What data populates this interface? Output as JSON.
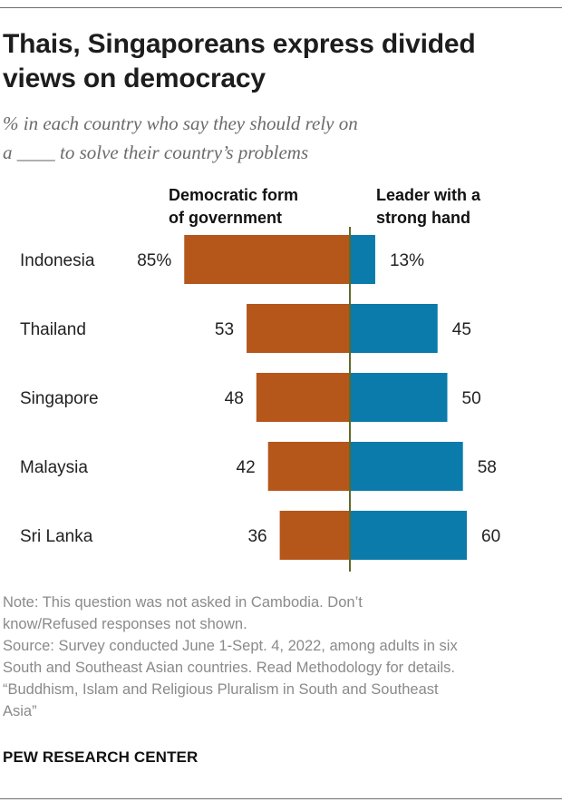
{
  "title": "Thais, Singaporeans express divided views on democracy",
  "subtitle_line1": "% in each country who say they should rely on",
  "subtitle_line2": "a ____ to solve their country’s problems",
  "chart_data": {
    "type": "bar",
    "categories": [
      "Indonesia",
      "Thailand",
      "Singapore",
      "Malaysia",
      "Sri Lanka"
    ],
    "series": [
      {
        "name": "Democratic form of government",
        "values": [
          85,
          53,
          48,
          42,
          36
        ],
        "color": "#b5561a"
      },
      {
        "name": "Leader with a strong hand",
        "values": [
          13,
          45,
          50,
          58,
          60
        ],
        "color": "#0a7bab"
      }
    ],
    "value_labels_left": [
      "85%",
      "53",
      "48",
      "42",
      "36"
    ],
    "value_labels_right": [
      "13%",
      "45",
      "50",
      "58",
      "60"
    ],
    "orientation": "diverging-horizontal",
    "axis_color": "#5e6b2a"
  },
  "col_head_left_line1": "Democratic form",
  "col_head_left_line2": "of government",
  "col_head_right_line1": "Leader with a",
  "col_head_right_line2": "strong hand",
  "note_line1": "Note: This question was not asked in Cambodia. Don’t",
  "note_line2": "know/Refused responses not shown.",
  "source_line1": "Source: Survey conducted June 1-Sept. 4, 2022, among adults in six",
  "source_line2": "South and Southeast Asian countries. Read Methodology for details.",
  "source_line3": "“Buddhism, Islam and Religious Pluralism in South and Southeast",
  "source_line4": "Asia”",
  "brand": "PEW RESEARCH CENTER"
}
